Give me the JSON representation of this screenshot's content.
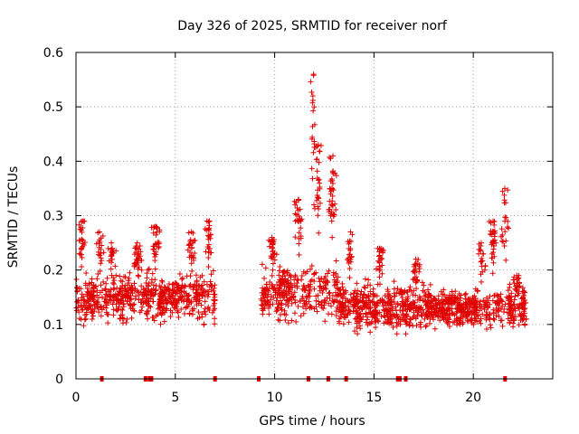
{
  "chart_data": {
    "type": "scatter",
    "title": "Day 326 of 2025, SRMTID for receiver norf",
    "xlabel": "GPS time / hours",
    "ylabel": "SRMTID / TECUs",
    "xlim": [
      0,
      24.0
    ],
    "ylim": [
      0,
      0.6
    ],
    "xticks": [
      0,
      5,
      10,
      15,
      20
    ],
    "yticks": [
      0,
      0.1,
      0.2,
      0.3,
      0.4,
      0.5,
      0.6
    ],
    "xtick_labels": [
      "0",
      "5",
      "10",
      "15",
      "20"
    ],
    "ytick_labels": [
      "0",
      "0.1",
      "0.2",
      "0.3",
      "0.4",
      "0.5",
      "0.6"
    ],
    "grid": true,
    "marker": "+",
    "color": "#e00000",
    "series": [
      {
        "name": "SRMTID",
        "segments": [
          {
            "x_start": 0.0,
            "x_end": 7.0,
            "baseline": 0.15,
            "spread": 0.06,
            "peaks": [
              [
                0.3,
                0.29
              ],
              [
                1.2,
                0.27
              ],
              [
                1.8,
                0.25
              ],
              [
                3.1,
                0.25
              ],
              [
                4.0,
                0.28
              ],
              [
                5.8,
                0.27
              ],
              [
                6.7,
                0.29
              ]
            ]
          },
          {
            "x_start": 9.3,
            "x_end": 13.2,
            "baseline": 0.16,
            "spread": 0.07,
            "peaks": [
              [
                9.9,
                0.26
              ],
              [
                11.2,
                0.33
              ],
              [
                11.95,
                0.56
              ],
              [
                12.2,
                0.43
              ],
              [
                12.9,
                0.41
              ]
            ]
          },
          {
            "x_start": 13.2,
            "x_end": 17.6,
            "baseline": 0.13,
            "spread": 0.06,
            "peaks": [
              [
                13.8,
                0.27
              ],
              [
                15.3,
                0.24
              ],
              [
                17.1,
                0.22
              ]
            ]
          },
          {
            "x_start": 17.6,
            "x_end": 22.7,
            "baseline": 0.13,
            "spread": 0.05,
            "peaks": [
              [
                20.4,
                0.25
              ],
              [
                21.0,
                0.29
              ],
              [
                21.6,
                0.35
              ],
              [
                22.2,
                0.19
              ]
            ]
          }
        ],
        "zero_points": [
          1.3,
          3.5,
          3.7,
          3.8,
          7.0,
          9.2,
          11.7,
          12.7,
          13.6,
          16.2,
          16.3,
          16.6,
          21.6
        ]
      }
    ]
  }
}
